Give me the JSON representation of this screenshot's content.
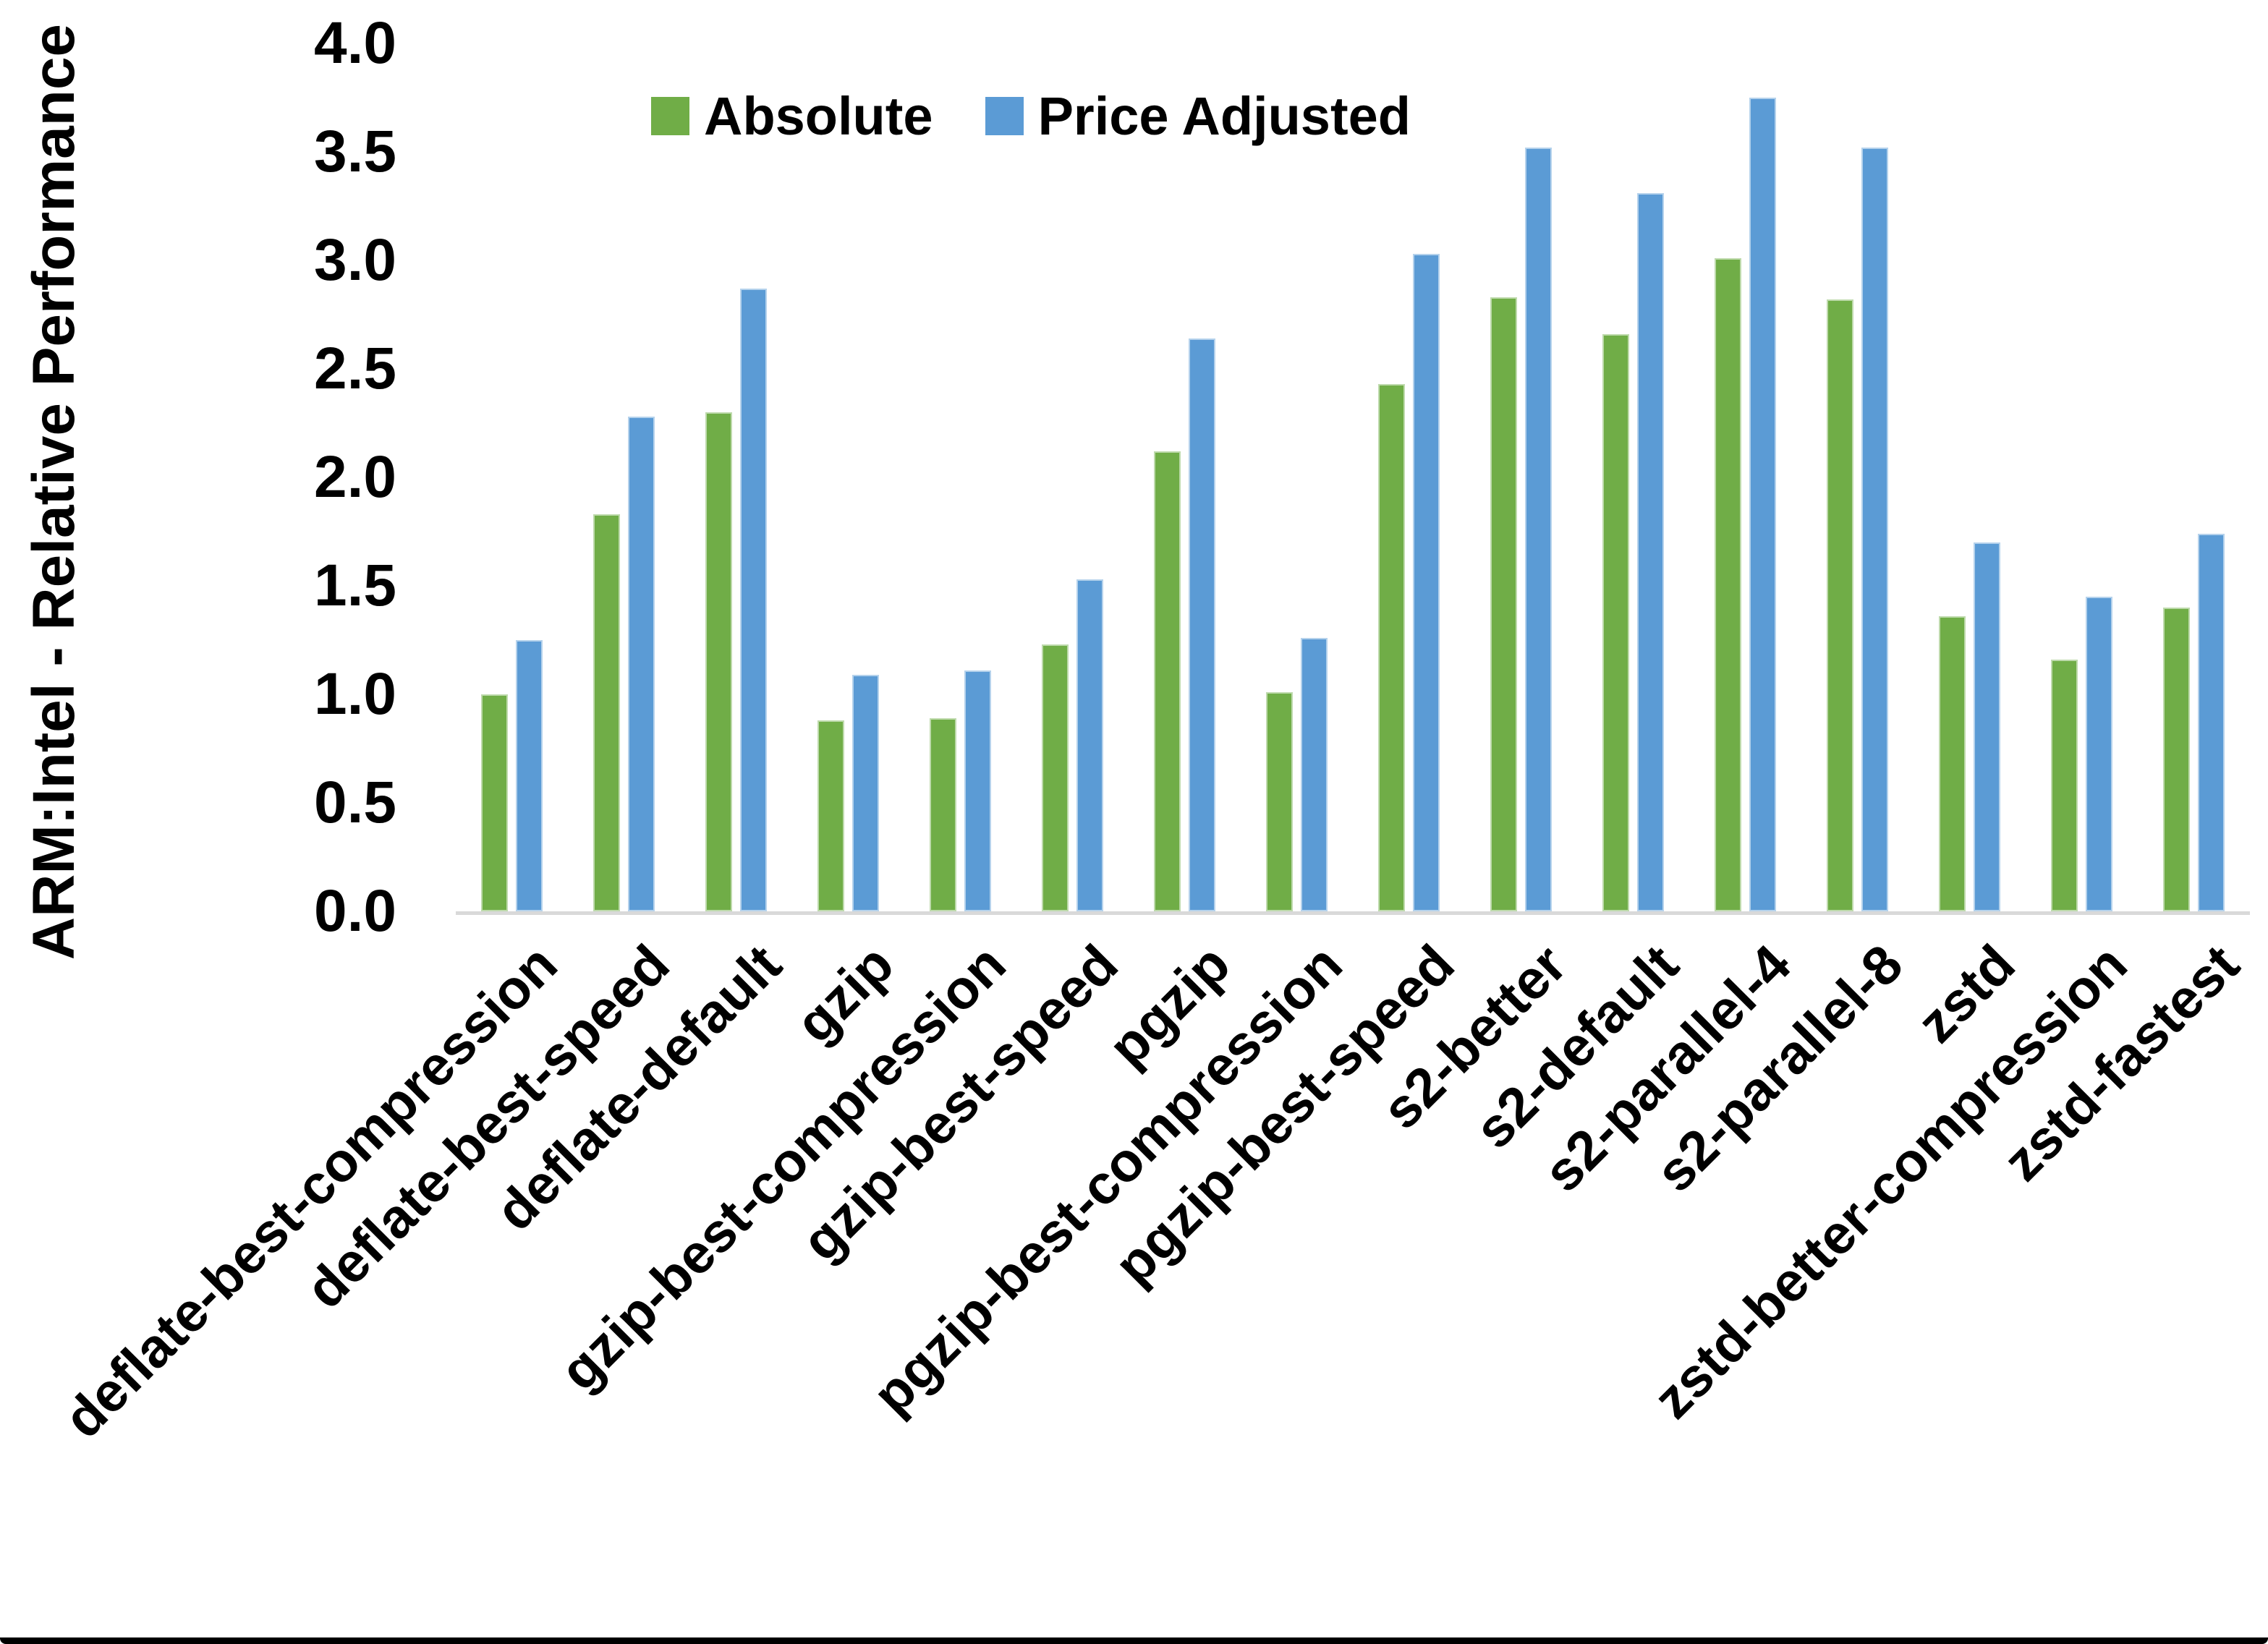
{
  "chart_data": {
    "type": "bar",
    "title": "",
    "xlabel": "",
    "ylabel": "ARM:Intel - Relative Performance",
    "ylim": [
      0.0,
      4.0
    ],
    "ytick_step": 0.5,
    "yticks": [
      "4.0",
      "3.5",
      "3.0",
      "2.5",
      "2.0",
      "1.5",
      "1.0",
      "0.5",
      "0.0"
    ],
    "grid": false,
    "legend_position": "top-center",
    "axis_line_color": "#D9D9D9",
    "categories": [
      "deflate-best-compression",
      "deflate-best-speed",
      "deflate-default",
      "gzip",
      "gzip-best-compression",
      "gzip-best-speed",
      "pgzip",
      "pgzip-best-compression",
      "pgzip-best-speed",
      "s2-better",
      "s2-default",
      "s2-parallel-4",
      "s2-parallel-8",
      "zstd",
      "zstd-better-compression",
      "zstd-fastest"
    ],
    "series": [
      {
        "name": "Absolute",
        "color": "#70AD47",
        "values": [
          1.0,
          1.83,
          2.3,
          0.88,
          0.89,
          1.23,
          2.12,
          1.01,
          2.43,
          2.83,
          2.66,
          3.01,
          2.82,
          1.36,
          1.16,
          1.4
        ]
      },
      {
        "name": "Price Adjusted",
        "color": "#5B9BD5",
        "values": [
          1.25,
          2.28,
          2.87,
          1.09,
          1.11,
          1.53,
          2.64,
          1.26,
          3.03,
          3.52,
          3.31,
          3.75,
          3.52,
          1.7,
          1.45,
          1.74
        ]
      }
    ]
  }
}
